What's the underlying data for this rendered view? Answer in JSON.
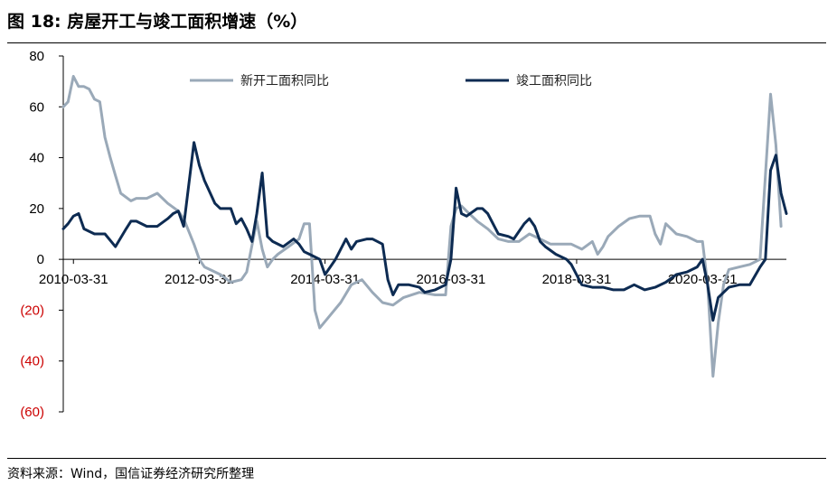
{
  "title": "图 18:  房屋开工与竣工面积增速（%）",
  "source": "资料来源：Wind，国信证券经济研究所整理",
  "colors": {
    "series_new_start": "#9aa9b8",
    "series_completed": "#0d2b52",
    "negative_tick": "#cc0000",
    "axis": "#000000"
  },
  "chart_data": {
    "type": "line",
    "ylim": [
      -60,
      80
    ],
    "y_ticks": [
      80,
      60,
      40,
      20,
      0,
      -20,
      -40,
      -60
    ],
    "y_tick_labels": [
      "80",
      "60",
      "40",
      "20",
      "0",
      "(20)",
      "(40)",
      "(60)"
    ],
    "x_range": [
      "2010-01-31",
      "2021-07-31"
    ],
    "x_ticks": [
      "2010-03-31",
      "2012-03-31",
      "2014-03-31",
      "2016-03-31",
      "2018-03-31",
      "2020-03-31"
    ],
    "x_tick_labels": [
      "2010-03-31",
      "2012-03-31",
      "2014-03-31",
      "2016-03-31",
      "2018-03-31",
      "2020-03-31"
    ],
    "legend_position": "top",
    "series": [
      {
        "name": "新开工面积同比",
        "color": "#9aa9b8",
        "points": [
          [
            "2010-01-31",
            60
          ],
          [
            "2010-02-28",
            62
          ],
          [
            "2010-03-31",
            72
          ],
          [
            "2010-04-30",
            68
          ],
          [
            "2010-05-31",
            68
          ],
          [
            "2010-06-30",
            67
          ],
          [
            "2010-07-31",
            63
          ],
          [
            "2010-08-31",
            62
          ],
          [
            "2010-09-30",
            48
          ],
          [
            "2010-10-31",
            40
          ],
          [
            "2010-11-30",
            33
          ],
          [
            "2010-12-31",
            26
          ],
          [
            "2011-02-28",
            23
          ],
          [
            "2011-03-31",
            24
          ],
          [
            "2011-05-31",
            24
          ],
          [
            "2011-07-31",
            26
          ],
          [
            "2011-09-30",
            22
          ],
          [
            "2011-11-30",
            19
          ],
          [
            "2011-12-31",
            16
          ],
          [
            "2012-02-29",
            6
          ],
          [
            "2012-03-31",
            0
          ],
          [
            "2012-04-30",
            -3
          ],
          [
            "2012-05-31",
            -4
          ],
          [
            "2012-07-31",
            -6
          ],
          [
            "2012-09-30",
            -9
          ],
          [
            "2012-11-30",
            -8
          ],
          [
            "2012-12-31",
            -5
          ],
          [
            "2013-02-28",
            15
          ],
          [
            "2013-03-31",
            4
          ],
          [
            "2013-04-30",
            -3
          ],
          [
            "2013-05-31",
            0
          ],
          [
            "2013-06-30",
            2
          ],
          [
            "2013-08-31",
            5
          ],
          [
            "2013-10-31",
            8
          ],
          [
            "2013-11-30",
            14
          ],
          [
            "2013-12-31",
            14
          ],
          [
            "2014-01-31",
            -20
          ],
          [
            "2014-02-28",
            -27
          ],
          [
            "2014-04-30",
            -22
          ],
          [
            "2014-06-30",
            -17
          ],
          [
            "2014-08-31",
            -10
          ],
          [
            "2014-10-31",
            -8
          ],
          [
            "2014-12-31",
            -13
          ],
          [
            "2015-02-28",
            -17
          ],
          [
            "2015-04-30",
            -18
          ],
          [
            "2015-06-30",
            -15
          ],
          [
            "2015-09-30",
            -13
          ],
          [
            "2015-12-31",
            -14
          ],
          [
            "2016-02-29",
            -14
          ],
          [
            "2016-03-31",
            13
          ],
          [
            "2016-04-30",
            20
          ],
          [
            "2016-05-31",
            21
          ],
          [
            "2016-06-30",
            19
          ],
          [
            "2016-08-31",
            15
          ],
          [
            "2016-10-31",
            12
          ],
          [
            "2016-12-31",
            8
          ],
          [
            "2017-02-28",
            7
          ],
          [
            "2017-04-30",
            7
          ],
          [
            "2017-06-30",
            10
          ],
          [
            "2017-08-31",
            8
          ],
          [
            "2017-10-31",
            6
          ],
          [
            "2017-12-31",
            6
          ],
          [
            "2018-02-28",
            6
          ],
          [
            "2018-04-30",
            4
          ],
          [
            "2018-06-30",
            7
          ],
          [
            "2018-07-31",
            2
          ],
          [
            "2018-08-31",
            5
          ],
          [
            "2018-09-30",
            9
          ],
          [
            "2018-11-30",
            13
          ],
          [
            "2019-01-31",
            16
          ],
          [
            "2019-03-31",
            17
          ],
          [
            "2019-05-31",
            17
          ],
          [
            "2019-06-30",
            10
          ],
          [
            "2019-07-31",
            6
          ],
          [
            "2019-08-31",
            14
          ],
          [
            "2019-10-31",
            10
          ],
          [
            "2019-12-31",
            9
          ],
          [
            "2020-02-29",
            7
          ],
          [
            "2020-03-31",
            7
          ],
          [
            "2020-04-30",
            -10
          ],
          [
            "2020-05-31",
            -46
          ],
          [
            "2020-06-30",
            -25
          ],
          [
            "2020-07-31",
            -10
          ],
          [
            "2020-08-31",
            -4
          ],
          [
            "2020-10-31",
            -3
          ],
          [
            "2020-12-31",
            -2
          ],
          [
            "2021-02-28",
            0
          ],
          [
            "2021-04-30",
            65
          ],
          [
            "2021-05-31",
            45
          ],
          [
            "2021-06-30",
            13
          ]
        ]
      },
      {
        "name": "竣工面积同比",
        "color": "#0d2b52",
        "points": [
          [
            "2010-01-31",
            12
          ],
          [
            "2010-02-28",
            14
          ],
          [
            "2010-03-31",
            17
          ],
          [
            "2010-04-30",
            18
          ],
          [
            "2010-05-31",
            12
          ],
          [
            "2010-07-31",
            10
          ],
          [
            "2010-09-30",
            10
          ],
          [
            "2010-11-30",
            5
          ],
          [
            "2011-01-31",
            12
          ],
          [
            "2011-02-28",
            15
          ],
          [
            "2011-03-31",
            15
          ],
          [
            "2011-05-31",
            13
          ],
          [
            "2011-07-31",
            13
          ],
          [
            "2011-09-30",
            16
          ],
          [
            "2011-10-31",
            18
          ],
          [
            "2011-11-30",
            19
          ],
          [
            "2011-12-31",
            13
          ],
          [
            "2012-02-29",
            46
          ],
          [
            "2012-03-31",
            37
          ],
          [
            "2012-04-30",
            31
          ],
          [
            "2012-06-30",
            22
          ],
          [
            "2012-07-31",
            20
          ],
          [
            "2012-09-30",
            20
          ],
          [
            "2012-10-31",
            14
          ],
          [
            "2012-11-30",
            16
          ],
          [
            "2012-12-31",
            12
          ],
          [
            "2013-01-31",
            7
          ],
          [
            "2013-02-28",
            18
          ],
          [
            "2013-03-31",
            34
          ],
          [
            "2013-04-30",
            9
          ],
          [
            "2013-05-31",
            7
          ],
          [
            "2013-07-31",
            5
          ],
          [
            "2013-09-30",
            8
          ],
          [
            "2013-10-31",
            6
          ],
          [
            "2013-11-30",
            3
          ],
          [
            "2013-12-31",
            2
          ],
          [
            "2014-02-28",
            0
          ],
          [
            "2014-03-31",
            -6
          ],
          [
            "2014-05-31",
            0
          ],
          [
            "2014-07-31",
            8
          ],
          [
            "2014-08-31",
            4
          ],
          [
            "2014-09-30",
            7
          ],
          [
            "2014-11-30",
            8
          ],
          [
            "2014-12-31",
            8
          ],
          [
            "2015-02-28",
            6
          ],
          [
            "2015-03-31",
            -8
          ],
          [
            "2015-04-30",
            -14
          ],
          [
            "2015-05-31",
            -10
          ],
          [
            "2015-07-31",
            -10
          ],
          [
            "2015-09-30",
            -11
          ],
          [
            "2015-10-31",
            -13
          ],
          [
            "2015-12-31",
            -12
          ],
          [
            "2016-02-29",
            -10
          ],
          [
            "2016-03-31",
            0
          ],
          [
            "2016-04-30",
            28
          ],
          [
            "2016-05-31",
            18
          ],
          [
            "2016-06-30",
            17
          ],
          [
            "2016-08-31",
            20
          ],
          [
            "2016-09-30",
            20
          ],
          [
            "2016-10-31",
            18
          ],
          [
            "2016-12-31",
            10
          ],
          [
            "2017-02-28",
            9
          ],
          [
            "2017-03-31",
            8
          ],
          [
            "2017-05-31",
            14
          ],
          [
            "2017-06-30",
            16
          ],
          [
            "2017-07-31",
            13
          ],
          [
            "2017-08-31",
            7
          ],
          [
            "2017-09-30",
            5
          ],
          [
            "2017-11-30",
            2
          ],
          [
            "2018-01-31",
            0
          ],
          [
            "2018-02-28",
            -2
          ],
          [
            "2018-04-30",
            -10
          ],
          [
            "2018-06-30",
            -11
          ],
          [
            "2018-08-31",
            -11
          ],
          [
            "2018-10-31",
            -12
          ],
          [
            "2018-12-31",
            -12
          ],
          [
            "2019-02-28",
            -10
          ],
          [
            "2019-04-30",
            -12
          ],
          [
            "2019-06-30",
            -11
          ],
          [
            "2019-08-31",
            -9
          ],
          [
            "2019-10-31",
            -6
          ],
          [
            "2019-12-31",
            -5
          ],
          [
            "2020-02-29",
            -3
          ],
          [
            "2020-03-31",
            0
          ],
          [
            "2020-04-30",
            -10
          ],
          [
            "2020-05-31",
            -24
          ],
          [
            "2020-06-30",
            -15
          ],
          [
            "2020-08-31",
            -11
          ],
          [
            "2020-10-31",
            -10
          ],
          [
            "2020-12-31",
            -10
          ],
          [
            "2021-02-28",
            -3
          ],
          [
            "2021-03-31",
            0
          ],
          [
            "2021-04-30",
            35
          ],
          [
            "2021-05-31",
            41
          ],
          [
            "2021-06-30",
            26
          ],
          [
            "2021-07-31",
            18
          ]
        ]
      }
    ]
  }
}
